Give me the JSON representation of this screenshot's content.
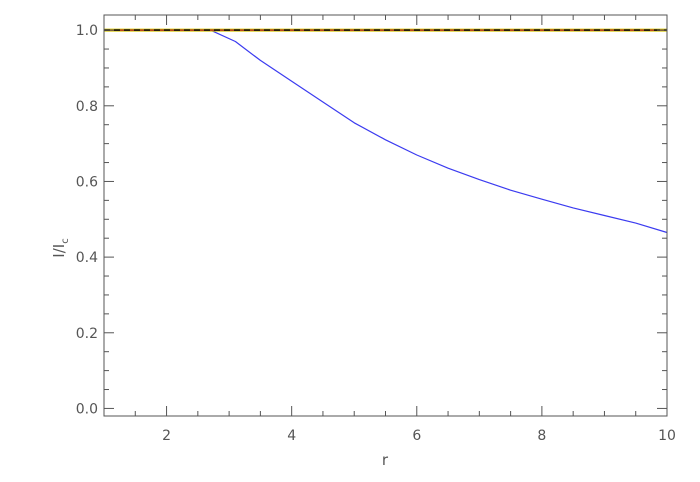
{
  "chart_data": {
    "type": "line",
    "xlabel": "r",
    "ylabel": "I/I",
    "ylabel_subscript": "c",
    "xlim": [
      1,
      10
    ],
    "ylim": [
      -0.02,
      1.04
    ],
    "x_ticks": [
      "2",
      "4",
      "6",
      "8",
      "10"
    ],
    "y_ticks": [
      "0.0",
      "0.2",
      "0.4",
      "0.6",
      "0.8",
      "1.0"
    ],
    "grid": false,
    "series": [
      {
        "color": "#3b3bf0",
        "style": "solid",
        "x": [
          1.0,
          2.0,
          2.7,
          3.1,
          3.5,
          4.0,
          4.5,
          5.0,
          5.5,
          6.0,
          6.5,
          7.0,
          7.5,
          8.0,
          8.5,
          9.0,
          9.5,
          10.0
        ],
        "y": [
          1.0,
          1.0,
          1.0,
          0.97,
          0.92,
          0.865,
          0.81,
          0.755,
          0.71,
          0.67,
          0.635,
          0.605,
          0.577,
          0.553,
          0.53,
          0.51,
          0.49,
          0.465
        ]
      },
      {
        "color": "#d4c400",
        "style": "solid",
        "x": [
          1.0,
          10.0
        ],
        "y": [
          1.0,
          1.0
        ]
      },
      {
        "color": "#b22222",
        "style": "solid",
        "x": [
          1.0,
          10.0
        ],
        "y": [
          1.0,
          1.0
        ]
      },
      {
        "color": "#111111",
        "style": "dashed",
        "x": [
          1.0,
          10.0
        ],
        "y": [
          1.0,
          1.0
        ]
      }
    ]
  }
}
